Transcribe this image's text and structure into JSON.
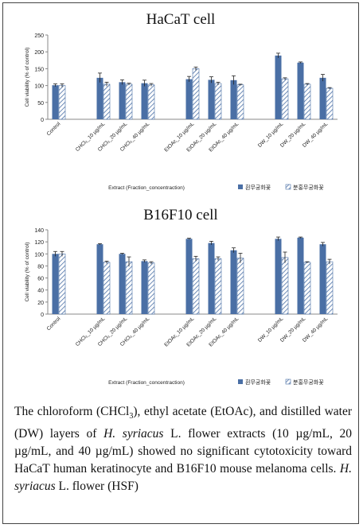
{
  "chart_data": [
    {
      "type": "bar",
      "title": "HaCaT cell",
      "xlabel": "Extract (Fraction_concentraction)",
      "ylabel": "Cell viability (% of control)",
      "ylim": [
        0,
        250
      ],
      "yticks": [
        0,
        50,
        100,
        150,
        200,
        250
      ],
      "grid": false,
      "legend_position": "bottom-right",
      "categories": [
        "Control",
        "",
        "CHCl₃_10 µg/mL",
        "CHCl₃_20 µg/mL",
        "CHCl₃_40 µg/mL",
        "",
        "EtOAc_10 µg/mL",
        "EtOAc_20 µg/mL",
        "EtOAc_40 µg/mL",
        "",
        "DW_10 µg/mL",
        "DW_20 µg/mL",
        "DW_40 µg/mL"
      ],
      "series": [
        {
          "name": "흰무궁화꽃",
          "color": "#4a6fa5",
          "pattern": "solid",
          "values": [
            101,
            null,
            123,
            110,
            107,
            null,
            119,
            117,
            116,
            null,
            189,
            168,
            123
          ],
          "errors": [
            4,
            null,
            14,
            7,
            9,
            null,
            8,
            9,
            13,
            null,
            7,
            2,
            10
          ]
        },
        {
          "name": "분홍무궁화꽃",
          "color": "#4a6fa5",
          "pattern": "hatched",
          "values": [
            100,
            null,
            104,
            104,
            102,
            null,
            150,
            106,
            102,
            null,
            120,
            104,
            92
          ],
          "errors": [
            5,
            null,
            6,
            3,
            4,
            null,
            5,
            4,
            2,
            null,
            3,
            2,
            2
          ]
        }
      ]
    },
    {
      "type": "bar",
      "title": "B16F10 cell",
      "xlabel": "Extract (Fraction_concentraction)",
      "ylabel": "Cell viability (% of control)",
      "ylim": [
        0,
        140
      ],
      "yticks": [
        0,
        20,
        40,
        60,
        80,
        100,
        120,
        140
      ],
      "grid": false,
      "legend_position": "bottom-right",
      "categories": [
        "Control",
        "",
        "CHCl₃_10 µg/mL",
        "CHCl₃_20 µg/mL",
        "CHCl₃_40 µg/mL",
        "",
        "EtOAc_10 µg/mL",
        "EtOAc_20 µg/mL",
        "EtOAc_40 µg/mL",
        "",
        "DW_10 µg/mL",
        "DW_20 µg/mL",
        "DW_40 µg/mL"
      ],
      "series": [
        {
          "name": "흰무궁화꽃",
          "color": "#4a6fa5",
          "pattern": "solid",
          "values": [
            100,
            null,
            116,
            100,
            88,
            null,
            125,
            118,
            106,
            null,
            125,
            127,
            116
          ],
          "errors": [
            4,
            null,
            1,
            1,
            2,
            null,
            1,
            3,
            4,
            null,
            3,
            1,
            3
          ]
        },
        {
          "name": "분홍무궁화꽃",
          "color": "#4a6fa5",
          "pattern": "hatched",
          "values": [
            100,
            null,
            86,
            87,
            85,
            null,
            92,
            92,
            93,
            null,
            94,
            86,
            87
          ],
          "errors": [
            4,
            null,
            2,
            8,
            2,
            null,
            4,
            3,
            8,
            null,
            9,
            1,
            4
          ]
        }
      ]
    }
  ],
  "caption": {
    "p1": "The chloroform (CHCl",
    "sub3": "3",
    "p2": "), ethyl acetate (EtOAc), and distilled water (DW) layers of ",
    "species": "H. syriacus",
    "p3": " L. flower extracts (10 µg/mL, 20 µg/mL, and 40 µg/mL) showed no significant cytotoxicity toward HaCaT human keratinocyte and B16F10 mouse melanoma cells. ",
    "species2": "H. syriacus",
    "p4": " L. flower (HSF)"
  }
}
